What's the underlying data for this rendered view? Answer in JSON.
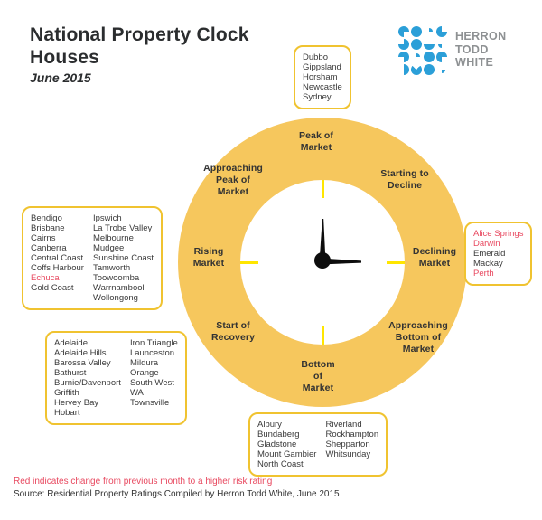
{
  "title": {
    "line1": "National Property Clock",
    "line2": "Houses",
    "subtitle": "June 2015"
  },
  "logo": {
    "lines": [
      "HERRON",
      "TODD",
      "WHITE"
    ]
  },
  "clock": {
    "stages": [
      {
        "id": "peak-of-market",
        "label": "Peak of\nMarket"
      },
      {
        "id": "starting-to-decline",
        "label": "Starting to\nDecline"
      },
      {
        "id": "declining-market",
        "label": "Declining\nMarket"
      },
      {
        "id": "approaching-bottom-of-market",
        "label": "Approaching\nBottom of\nMarket"
      },
      {
        "id": "bottom-of-market",
        "label": "Bottom\nof\nMarket"
      },
      {
        "id": "start-of-recovery",
        "label": "Start of\nRecovery"
      },
      {
        "id": "rising-market",
        "label": "Rising\nMarket"
      },
      {
        "id": "approaching-peak-of-market",
        "label": "Approaching\nPeak of\nMarket"
      }
    ]
  },
  "boxes": {
    "peak": {
      "cities": [
        "Dubbo",
        "Gippsland",
        "Horsham",
        "Newcastle",
        "Sydney"
      ]
    },
    "rising": {
      "col1": [
        "Bendigo",
        "Brisbane",
        "Cairns",
        "Canberra",
        "Central Coast",
        "Coffs Harbour",
        "Echuca",
        "Gold Coast"
      ],
      "col2": [
        "Ipswich",
        "La Trobe Valley",
        "Melbourne",
        "Mudgee",
        "Sunshine Coast",
        "Tamworth",
        "Toowoomba",
        "Warrnambool",
        "Wollongong"
      ]
    },
    "declining": {
      "cities": [
        "Alice Springs",
        "Darwin",
        "Emerald",
        "Mackay",
        "Perth"
      ]
    },
    "recovery": {
      "col1": [
        "Adelaide",
        "Adelaide Hills",
        "Barossa Valley",
        "Bathurst",
        "Burnie/Davenport",
        "Griffith",
        "Hervey Bay",
        "Hobart"
      ],
      "col2": [
        "Iron Triangle",
        "Launceston",
        "Mildura",
        "Orange",
        "South West",
        "WA",
        "Townsville"
      ]
    },
    "bottom": {
      "col1": [
        "Albury",
        "Bundaberg",
        "Gladstone",
        "Mount Gambier",
        "North Coast"
      ],
      "col2": [
        "Riverland",
        "Rockhampton",
        "Shepparton",
        "Whitsunday"
      ]
    }
  },
  "red_cities": [
    "Echuca",
    "Alice Springs",
    "Darwin",
    "Perth"
  ],
  "footer": {
    "note": "Red indicates change from previous month to a higher risk rating",
    "source": "Source: Residential Property Ratings Compiled by Herron Todd White, June 2015"
  },
  "colors": {
    "donut": "#f6c75d",
    "tick": "#ffe600",
    "box_border": "#f0c330",
    "risk_red": "#e8485f",
    "logo_blue": "#2b9fd8",
    "logo_gray": "#8e9193"
  }
}
